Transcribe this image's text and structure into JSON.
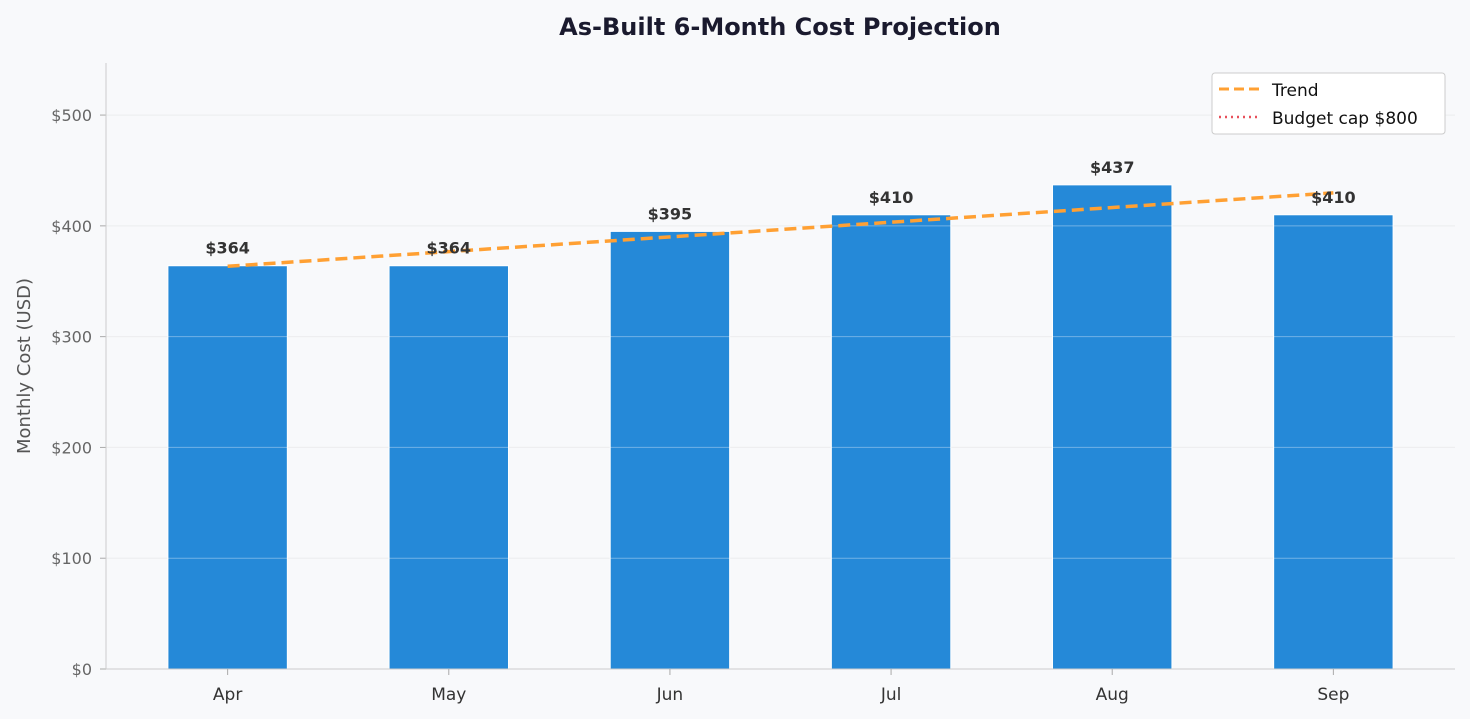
{
  "chart_data": {
    "type": "bar",
    "title": "As-Built 6-Month Cost Projection",
    "xlabel": "",
    "ylabel": "Monthly Cost (USD)",
    "categories": [
      "Apr",
      "May",
      "Jun",
      "Jul",
      "Aug",
      "Sep"
    ],
    "values": [
      364,
      364,
      395,
      410,
      437,
      410
    ],
    "data_labels": [
      "$364",
      "$364",
      "$395",
      "$410",
      "$437",
      "$410"
    ],
    "ylim": [
      0,
      547
    ],
    "yticks": [
      0,
      100,
      200,
      300,
      400,
      500
    ],
    "ytick_labels": [
      "$0",
      "$100",
      "$200",
      "$300",
      "$400",
      "$500"
    ],
    "trend": {
      "name": "Trend",
      "start": 363.5,
      "end": 429.8,
      "style": "dashed"
    },
    "budget_cap": {
      "name": "Budget cap  $800",
      "value": 800,
      "style": "dotted"
    },
    "legend": {
      "placement": "top-right",
      "entries": [
        "Trend",
        "Budget cap  $800"
      ]
    },
    "grid": "horizontal",
    "colors": {
      "bar": "#2589d8",
      "trend": "#ffa033",
      "budget_cap": "#e8505b",
      "background": "#f8f9fb"
    }
  }
}
